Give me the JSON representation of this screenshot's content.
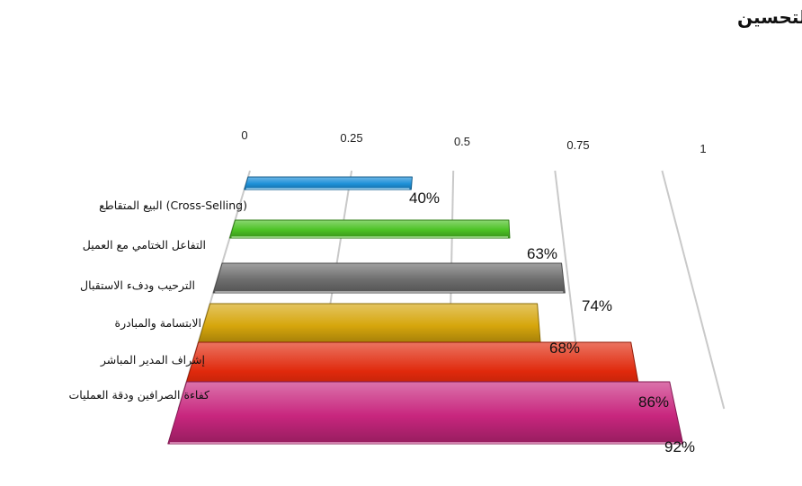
{
  "chart_data": {
    "type": "bar",
    "orientation": "horizontal",
    "title": "أولويات التحسين",
    "xlabel": "",
    "ylabel": "",
    "xlim": [
      0,
      1
    ],
    "ticks": [
      "0",
      "0.25",
      "0.5",
      "0.75",
      "1"
    ],
    "tick_values": [
      0,
      0.25,
      0.5,
      0.75,
      1
    ],
    "grid": true,
    "legend": "none",
    "categories": [
      "البيع المتقاطع (Cross-Selling)",
      "التفاعل الختامي مع العميل",
      "الترحيب ودفء الاستقبال",
      "الابتسامة والمبادرة",
      "إشراف المدير المباشر",
      "كفاءة الصرافين ودقة العمليات"
    ],
    "values": [
      0.4,
      0.63,
      0.74,
      0.68,
      0.86,
      0.92
    ],
    "data_labels": [
      "40%",
      "63%",
      "74%",
      "68%",
      "86%",
      "92%"
    ],
    "colors": [
      "#1e90d8",
      "#4cc224",
      "#6e6e6e",
      "#d6a60c",
      "#e0290c",
      "#c8267e"
    ]
  }
}
